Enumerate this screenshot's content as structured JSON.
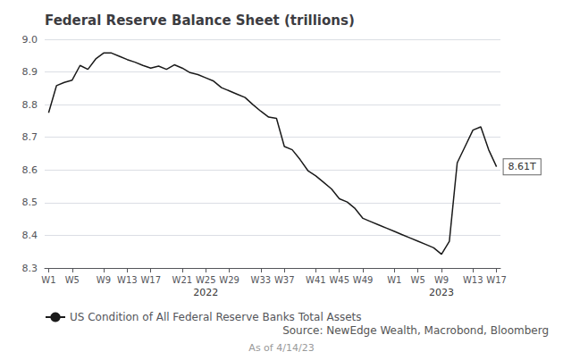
{
  "chart_data": {
    "type": "line",
    "title": "Federal Reserve Balance Sheet (trillions)",
    "categories": [
      "W1",
      null,
      null,
      "W5",
      null,
      null,
      null,
      "W9",
      null,
      null,
      "W13",
      null,
      null,
      "W17",
      null,
      null,
      null,
      "W21",
      null,
      null,
      "W25",
      null,
      null,
      "W29",
      null,
      null,
      null,
      "W33",
      null,
      null,
      "W37",
      null,
      null,
      null,
      "W41",
      null,
      null,
      "W45",
      null,
      null,
      "W49",
      null,
      null,
      null,
      "W1",
      null,
      null,
      "W5",
      null,
      null,
      "W9",
      null,
      null,
      null,
      "W13",
      null,
      null,
      "W17"
    ],
    "series": [
      {
        "name": "US Condition of All Federal Reserve Banks Total Assets",
        "color": "#1a1a1a",
        "values": [
          8.775,
          8.858,
          8.868,
          8.875,
          8.92,
          8.908,
          8.94,
          8.958,
          8.958,
          8.948,
          8.938,
          8.93,
          8.92,
          8.912,
          8.918,
          8.908,
          8.922,
          8.912,
          8.898,
          8.892,
          8.882,
          8.872,
          8.852,
          8.842,
          8.832,
          8.822,
          8.8,
          8.78,
          8.762,
          8.758,
          8.672,
          8.662,
          8.632,
          8.598,
          8.582,
          8.562,
          8.542,
          8.512,
          8.502,
          8.482,
          8.452,
          8.442,
          8.432,
          8.422,
          8.412,
          8.402,
          8.392,
          8.382,
          8.372,
          8.362,
          8.342,
          8.382,
          8.622,
          8.672,
          8.722,
          8.732,
          8.662,
          8.61
        ]
      }
    ],
    "ylim": [
      8.3,
      9.0
    ],
    "yticks": [
      8.3,
      8.4,
      8.5,
      8.6,
      8.7,
      8.8,
      8.9,
      {
        "value": 9.0,
        "label": "9.0"
      }
    ],
    "grid": true,
    "legend": "bottom left",
    "annotations": [
      {
        "text": "2022",
        "x": 20
      },
      {
        "text": "2023",
        "x": 50
      },
      {
        "text": "8.61T",
        "x": 57,
        "y": 8.61
      },
      {
        "text": "Source: NewEdge Wealth, Macrobond, Bloomberg"
      },
      {
        "text": "As of 4/14/23"
      }
    ]
  }
}
